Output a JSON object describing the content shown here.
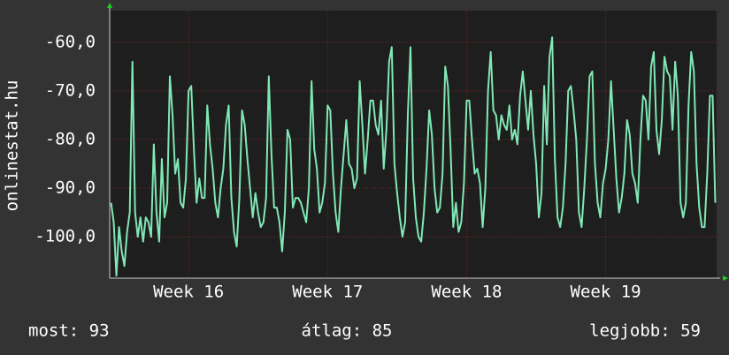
{
  "chart_data": {
    "type": "line",
    "ylabel": "onlinestat.hu",
    "categories": [
      null,
      null,
      null,
      null,
      null,
      null,
      null,
      null,
      null,
      null,
      null,
      null,
      null,
      null,
      null,
      null,
      null,
      null,
      null,
      null,
      null,
      null,
      null,
      null,
      null,
      null,
      null,
      null,
      null,
      "Week 16",
      null,
      null,
      null,
      null,
      null,
      null,
      null,
      null,
      null,
      null,
      null,
      null,
      null,
      null,
      null,
      null,
      null,
      null,
      null,
      null,
      null,
      null,
      null,
      null,
      null,
      null,
      null,
      null,
      null,
      null,
      null,
      null,
      null,
      null,
      null,
      null,
      null,
      null,
      null,
      null,
      null,
      null,
      null,
      null,
      null,
      null,
      null,
      null,
      null,
      null,
      null,
      "Week 17",
      null,
      null,
      null,
      null,
      null,
      null,
      null,
      null,
      null,
      null,
      null,
      null,
      null,
      null,
      null,
      null,
      null,
      null,
      null,
      null,
      null,
      null,
      null,
      null,
      null,
      null,
      null,
      null,
      null,
      null,
      null,
      null,
      null,
      null,
      null,
      null,
      null,
      null,
      null,
      null,
      null,
      null,
      null,
      null,
      null,
      null,
      null,
      null,
      null,
      null,
      null,
      "Week 18",
      null,
      null,
      null,
      null,
      null,
      null,
      null,
      null,
      null,
      null,
      null,
      null,
      null,
      null,
      null,
      null,
      null,
      null,
      null,
      null,
      null,
      null,
      null,
      null,
      null,
      null,
      null,
      null,
      null,
      null,
      null,
      null,
      null,
      null,
      null,
      null,
      null,
      null,
      null,
      null,
      null,
      null,
      null,
      null,
      null,
      null,
      null,
      null,
      null,
      null,
      null,
      "Week 19",
      null,
      null,
      null,
      null,
      null,
      null,
      null,
      null,
      null,
      null,
      null,
      null,
      null,
      null,
      null,
      null,
      null,
      null,
      null,
      null,
      null,
      null,
      null,
      null,
      null,
      null,
      null,
      null,
      null,
      null,
      null,
      null,
      null,
      null,
      null,
      null,
      null,
      null,
      null,
      null,
      null
    ],
    "values": [
      -93,
      -97,
      -108,
      -98,
      -103,
      -106,
      -99,
      -95,
      -64,
      -95,
      -100,
      -96,
      -101,
      -96,
      -97,
      -100,
      -81,
      -95,
      -101,
      -84,
      -96,
      -93,
      -67,
      -75,
      -87,
      -84,
      -93,
      -94,
      -88,
      -70,
      -69,
      -82,
      -93,
      -88,
      -92,
      -92,
      -73,
      -81,
      -86,
      -93,
      -96,
      -90,
      -86,
      -77,
      -73,
      -92,
      -99,
      -102,
      -92,
      -74,
      -77,
      -84,
      -90,
      -96,
      -91,
      -95,
      -98,
      -97,
      -92,
      -67,
      -83,
      -94,
      -94,
      -97,
      -103,
      -95,
      -78,
      -80,
      -94,
      -92,
      -92,
      -93,
      -95,
      -97,
      -90,
      -68,
      -82,
      -86,
      -95,
      -93,
      -89,
      -73,
      -74,
      -87,
      -95,
      -99,
      -90,
      -83,
      -76,
      -85,
      -86,
      -90,
      -88,
      -68,
      -77,
      -87,
      -80,
      -72,
      -72,
      -77,
      -79,
      -72,
      -86,
      -78,
      -64,
      -61,
      -85,
      -91,
      -96,
      -100,
      -97,
      -75,
      -61,
      -88,
      -96,
      -100,
      -101,
      -95,
      -86,
      -74,
      -79,
      -90,
      -95,
      -94,
      -87,
      -65,
      -69,
      -82,
      -98,
      -93,
      -99,
      -97,
      -89,
      -72,
      -72,
      -80,
      -87,
      -86,
      -89,
      -98,
      -90,
      -70,
      -62,
      -74,
      -75,
      -80,
      -75,
      -77,
      -78,
      -73,
      -80,
      -78,
      -81,
      -71,
      -66,
      -72,
      -78,
      -70,
      -79,
      -85,
      -96,
      -91,
      -69,
      -81,
      -63,
      -59,
      -84,
      -96,
      -98,
      -94,
      -85,
      -70,
      -69,
      -74,
      -80,
      -95,
      -98,
      -90,
      -80,
      -67,
      -66,
      -85,
      -93,
      -96,
      -89,
      -86,
      -80,
      -68,
      -78,
      -88,
      -95,
      -92,
      -87,
      -76,
      -79,
      -87,
      -89,
      -93,
      -80,
      -71,
      -72,
      -80,
      -65,
      -62,
      -78,
      -83,
      -76,
      -63,
      -66,
      -67,
      -78,
      -64,
      -71,
      -93,
      -96,
      -93,
      -73,
      -62,
      -66,
      -85,
      -94,
      -98,
      -98,
      -87,
      -71,
      -71,
      -93
    ],
    "color": "#80e8b4",
    "ylim": [
      -108.5,
      -53.5
    ],
    "yticks": [
      {
        "value": -60,
        "label": "-60,0"
      },
      {
        "value": -70,
        "label": "-70,0"
      },
      {
        "value": -80,
        "label": "-80,0"
      },
      {
        "value": -90,
        "label": "-90,0"
      },
      {
        "value": -100,
        "label": "-100,0"
      }
    ],
    "grid": true,
    "summary": [
      "most: 93",
      "átlag: 85",
      "legjobb: 59"
    ]
  }
}
